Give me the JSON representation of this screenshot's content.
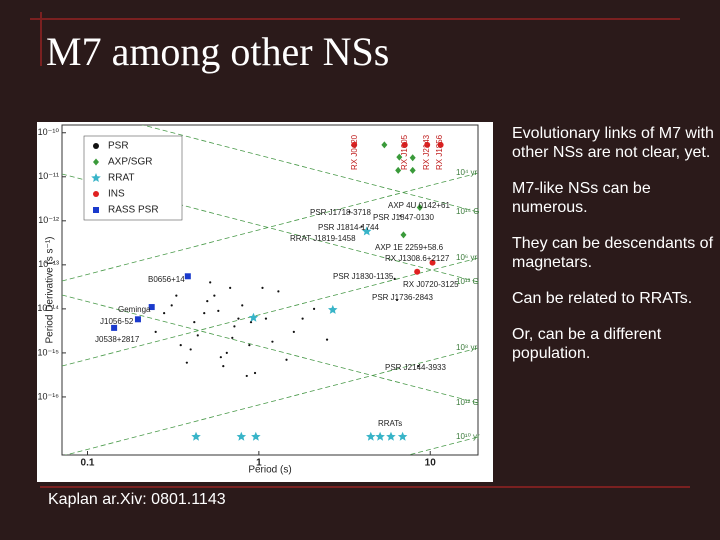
{
  "slide": {
    "title": "M7 among other NSs",
    "bullets": [
      "Evolutionary links of M7 with other NSs are not clear, yet.",
      "M7-like NSs can be numerous.",
      "They can be descendants of magnetars.",
      "Can be related to RRATs.",
      "Or, can be a different population."
    ],
    "caption": "Kaplan ar.Xiv: 0801.1143"
  },
  "chart_data": {
    "type": "scatter",
    "x_label": "Period (s)",
    "y_label": "Period Derivative (s s⁻¹)",
    "log_x": true,
    "log_y": true,
    "grid": false,
    "legend": "upper left",
    "xlim": [
      0.071,
      19
    ],
    "xticks": [
      0.1,
      1,
      10
    ],
    "ylim": [
      4.8e-18,
      1.5e-10
    ],
    "yticks": [
      {
        "value": 1e-10,
        "label": "10⁻¹⁰"
      },
      {
        "value": 1e-11,
        "label": "10⁻¹¹"
      },
      {
        "value": 1e-12,
        "label": "10⁻¹²"
      },
      {
        "value": 1e-13,
        "label": "10⁻¹³"
      },
      {
        "value": 1e-14,
        "label": "10⁻¹⁴"
      },
      {
        "value": 1e-15,
        "label": "10⁻¹⁵"
      },
      {
        "value": 1e-16,
        "label": "10⁻¹⁶"
      }
    ],
    "series": [
      {
        "name": "PSR",
        "color": "#111111",
        "marker": "dot",
        "x": [
          0.25,
          0.31,
          0.42,
          0.55,
          0.6,
          0.72,
          0.88,
          1.1,
          1.3,
          1.6,
          2.1,
          0.35,
          0.48,
          0.65,
          0.8,
          0.95,
          1.2,
          0.52,
          0.38,
          0.7,
          0.9,
          1.45,
          0.58,
          0.44,
          0.33,
          0.76,
          1.05,
          0.62,
          0.5,
          0.28,
          1.8,
          2.5,
          0.68,
          0.85,
          0.4,
          3.38,
          6.7,
          3.98,
          6.2,
          6.4,
          8.5
        ],
        "values": [
          3e-15,
          1.2e-14,
          5e-15,
          2e-14,
          8e-16,
          4e-15,
          1.5e-15,
          6e-15,
          2.5e-14,
          3e-15,
          1e-14,
          1.5e-15,
          8e-15,
          1e-15,
          1.2e-14,
          3.5e-16,
          1.8e-15,
          4e-14,
          6e-16,
          2.2e-15,
          5e-15,
          7e-16,
          9e-15,
          2.5e-15,
          2e-14,
          6e-15,
          3e-14,
          5e-16,
          1.5e-14,
          8e-15,
          6e-15,
          2e-15,
          3e-14,
          3e-16,
          1.2e-15,
          1.6e-12,
          1.3e-12,
          7.4e-13,
          4.8e-14,
          1.6e-14,
          5e-16
        ]
      },
      {
        "name": "AXP/SGR",
        "color": "#3a9a3a",
        "marker": "diamond",
        "x": [
          5.4,
          6.6,
          7.9,
          6.5,
          7.9,
          8.69,
          6.98
        ],
        "values": [
          5.3e-11,
          2.8e-11,
          2.7e-11,
          1.4e-11,
          1.4e-11,
          2e-12,
          4.8e-13
        ]
      },
      {
        "name": "RRAT",
        "color": "#38b4c8",
        "marker": "star",
        "x": [
          4.26,
          0.93,
          2.7,
          0.43,
          0.79,
          0.96,
          4.5,
          5.1,
          5.9,
          6.9
        ],
        "values": [
          5.75e-13,
          6.3e-15,
          9.5e-15,
          1.25e-17,
          1.25e-17,
          1.25e-17,
          1.25e-17,
          1.25e-17,
          1.25e-17,
          1.25e-17
        ]
      },
      {
        "name": "INS",
        "color": "#e02020",
        "marker": "circle",
        "x": [
          10.31,
          8.39,
          3.6,
          7.1,
          9.6,
          11.5
        ],
        "values": [
          1.12e-13,
          6.98e-14,
          5.3e-11,
          5.3e-11,
          5.3e-11,
          5.3e-11
        ]
      },
      {
        "name": "RASS PSR",
        "color": "#1a3acc",
        "marker": "square",
        "x": [
          0.385,
          0.237,
          0.197,
          0.143
        ],
        "values": [
          5.5e-14,
          1.1e-14,
          5.8e-15,
          3.7e-15
        ]
      }
    ],
    "annotations": [
      "PSR J1718-3718",
      "PSR J1847-0130",
      "PSR J1814-1744",
      "RRAT J1819-1458",
      "AXP 4U 0142+61",
      "AXP 1E 2259+58.6",
      "RX J1308.6+2127",
      "RX J0720-3125",
      "PSR J1830-1135",
      "PSR J1736-2843",
      "PSR J2144-3933",
      "B0656+14",
      "Geminga",
      "J1056-52",
      "J0538+2817",
      "RRATs",
      "RX J0420",
      "RX J1605",
      "RX J2143",
      "RX J1856",
      "10⁴ yr",
      "10¹⁴ G",
      "10⁶ yr",
      "10¹³ G",
      "10⁸ yr",
      "10¹² G",
      "10¹⁰ yr"
    ]
  }
}
